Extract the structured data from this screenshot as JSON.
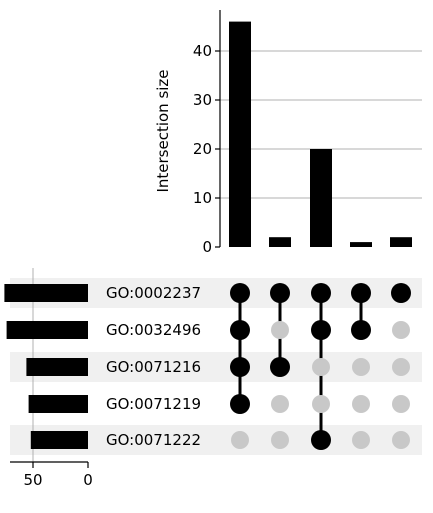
{
  "chart_data": {
    "type": "upset",
    "intersection_chart": {
      "type": "bar",
      "ylabel": "Intersection size",
      "ylim": [
        0,
        48
      ],
      "yticks": [
        0,
        10,
        20,
        30,
        40
      ],
      "grid": true,
      "values": [
        46,
        2,
        20,
        1,
        2
      ]
    },
    "set_size_chart": {
      "type": "bar",
      "orientation": "horizontal-reversed",
      "xticks": [
        50,
        0
      ],
      "xlim": [
        0,
        88
      ],
      "values": [
        76,
        74,
        56,
        54,
        52
      ]
    },
    "sets": [
      "GO:0002237",
      "GO:0032496",
      "GO:0071216",
      "GO:0071219",
      "GO:0071222"
    ],
    "intersections": [
      [
        true,
        true,
        true,
        true,
        true
      ],
      [
        true,
        false,
        true,
        true,
        false
      ],
      [
        true,
        true,
        false,
        false,
        false
      ],
      [
        true,
        false,
        false,
        false,
        false
      ],
      [
        false,
        false,
        true,
        false,
        false
      ]
    ],
    "colors": {
      "bar": "#000000",
      "active_dot": "#000000",
      "inactive_dot": "#c8c8c8",
      "stripe": "#f0f0f0",
      "grid": "#b0b0b0"
    }
  }
}
